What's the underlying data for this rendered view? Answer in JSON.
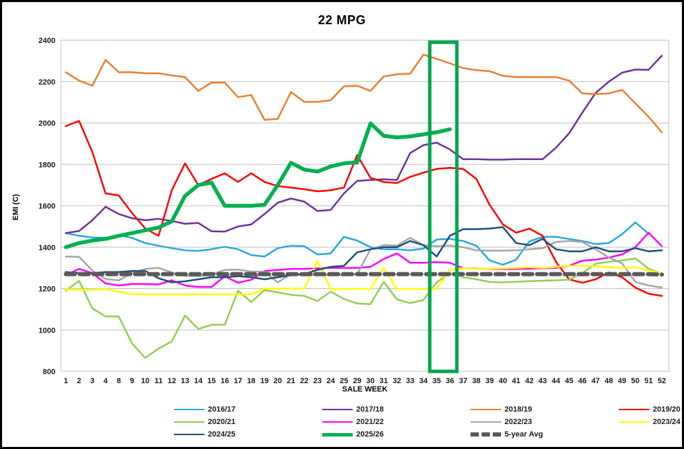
{
  "window": {
    "title": "22 MPG chart",
    "background": "#ffffff",
    "frame_color": "#000000"
  },
  "chart_data": {
    "type": "line",
    "title": "22 MPG",
    "xlabel": "SALE WEEK",
    "ylabel": "EMI (C)",
    "ylim": [
      800,
      2400
    ],
    "yticks": [
      800,
      1000,
      1200,
      1400,
      1600,
      1800,
      2000,
      2200,
      2400
    ],
    "grid": "horizontal",
    "legend_position": "bottom",
    "gridline_color": "#BFBFBF",
    "highlight_box": {
      "from_category": "35",
      "to_category": "36",
      "color": "#00A550",
      "note": "vertical rectangle spanning full plot height at weeks 35-36"
    },
    "categories": [
      "1",
      "2",
      "3",
      "4",
      "8",
      "9",
      "10",
      "11",
      "12",
      "13",
      "14",
      "15",
      "16",
      "17",
      "18",
      "19",
      "20",
      "21",
      "22",
      "23",
      "24",
      "25",
      "29",
      "30",
      "31",
      "32",
      "33",
      "34",
      "35",
      "36",
      "37",
      "38",
      "39",
      "40",
      "41",
      "42",
      "43",
      "44",
      "45",
      "46",
      "47",
      "48",
      "49",
      "50",
      "51",
      "52"
    ],
    "series": [
      {
        "name": "2016/17",
        "color": "#29A8E0",
        "width": 2.5,
        "dash": null,
        "values": [
          1468,
          1455,
          1447,
          1445,
          1458,
          1445,
          1420,
          1407,
          1395,
          1385,
          1382,
          1390,
          1402,
          1390,
          1362,
          1355,
          1395,
          1407,
          1405,
          1365,
          1370,
          1450,
          1432,
          1400,
          1390,
          1390,
          1385,
          1393,
          1437,
          1440,
          1430,
          1407,
          1336,
          1315,
          1340,
          1428,
          1450,
          1450,
          1440,
          1430,
          1415,
          1420,
          1463,
          1520,
          1465,
          null
        ]
      },
      {
        "name": "2017/18",
        "color": "#7030A0",
        "width": 2.5,
        "dash": null,
        "values": [
          1468,
          1478,
          1530,
          1595,
          1560,
          1540,
          1530,
          1537,
          1527,
          1513,
          1517,
          1477,
          1475,
          1500,
          1510,
          1560,
          1615,
          1635,
          1620,
          1575,
          1580,
          1660,
          1720,
          1725,
          1728,
          1725,
          1855,
          1893,
          1905,
          1872,
          1825,
          1825,
          1823,
          1823,
          1825,
          1825,
          1825,
          1880,
          1950,
          2050,
          2145,
          2200,
          2243,
          2258,
          2257,
          2325
        ]
      },
      {
        "name": "2018/19",
        "color": "#ED7D31",
        "width": 2.5,
        "dash": null,
        "values": [
          2245,
          2205,
          2180,
          2305,
          2245,
          2245,
          2240,
          2240,
          2230,
          2222,
          2155,
          2195,
          2195,
          2125,
          2135,
          2015,
          2020,
          2150,
          2102,
          2102,
          2110,
          2177,
          2180,
          2155,
          2225,
          2235,
          2238,
          2330,
          2310,
          2288,
          2265,
          2255,
          2250,
          2228,
          2222,
          2222,
          2222,
          2222,
          2205,
          2143,
          2140,
          2143,
          2160,
          2095,
          2030,
          1955
        ]
      },
      {
        "name": "2019/20",
        "color": "#FF0000",
        "width": 2.5,
        "dash": null,
        "values": [
          1985,
          2010,
          1860,
          1660,
          1650,
          1565,
          1490,
          1455,
          1675,
          1805,
          1700,
          1730,
          1757,
          1715,
          1757,
          1715,
          1695,
          1688,
          1680,
          1670,
          1675,
          1688,
          1845,
          1735,
          1715,
          1710,
          1740,
          1760,
          1778,
          1783,
          1778,
          1730,
          1604,
          1510,
          1470,
          1490,
          1455,
          1330,
          1245,
          1228,
          1245,
          1278,
          1255,
          1205,
          1175,
          1165
        ]
      },
      {
        "name": "2020/21",
        "color": "#92D050",
        "width": 2.5,
        "dash": null,
        "values": [
          1190,
          1237,
          1105,
          1065,
          1065,
          935,
          865,
          910,
          945,
          1070,
          1005,
          1025,
          1025,
          1190,
          1135,
          1193,
          1182,
          1170,
          1165,
          1140,
          1185,
          1150,
          1128,
          1125,
          1232,
          1148,
          1130,
          1145,
          1230,
          1275,
          1255,
          1245,
          1232,
          1230,
          1233,
          1236,
          1238,
          1240,
          1243,
          1275,
          1320,
          1330,
          1336,
          1346,
          1296,
          1272
        ]
      },
      {
        "name": "2021/22",
        "color": "#FF00FF",
        "width": 2.5,
        "dash": null,
        "values": [
          1265,
          1295,
          1275,
          1225,
          1215,
          1222,
          1222,
          1220,
          1240,
          1215,
          1208,
          1208,
          1260,
          1228,
          1243,
          1285,
          1290,
          1295,
          1295,
          1298,
          1300,
          1300,
          1300,
          1305,
          1343,
          1370,
          1325,
          1325,
          1328,
          1325,
          1298,
          1296,
          1295,
          1294,
          1295,
          1296,
          1298,
          1300,
          1310,
          1335,
          1340,
          1350,
          1365,
          1400,
          1470,
          1405
        ]
      },
      {
        "name": "2022/23",
        "color": "#A6A6A6",
        "width": 2.5,
        "dash": null,
        "values": [
          1355,
          1353,
          1287,
          1247,
          1240,
          1275,
          1295,
          1300,
          1278,
          1262,
          1260,
          1268,
          1290,
          1292,
          1282,
          1282,
          1230,
          1270,
          1268,
          1265,
          1265,
          1265,
          1270,
          1390,
          1410,
          1408,
          1445,
          1410,
          1405,
          1408,
          1400,
          1385,
          1383,
          1383,
          1385,
          1390,
          1395,
          1425,
          1430,
          1425,
          1390,
          1350,
          1322,
          1232,
          1215,
          1205
        ]
      },
      {
        "name": "2023/24",
        "color": "#FFFF00",
        "width": 2.5,
        "dash": null,
        "values": [
          1197,
          1193,
          1195,
          1197,
          1185,
          1175,
          1172,
          1172,
          1172,
          1172,
          1172,
          1172,
          1172,
          1172,
          1172,
          1200,
          1200,
          1200,
          1200,
          1335,
          1198,
          1198,
          1198,
          1198,
          1300,
          1198,
          1198,
          1198,
          1198,
          1290,
          1298,
          1295,
          1296,
          1298,
          1300,
          1303,
          1300,
          1305,
          1310,
          1310,
          1308,
          1303,
          1300,
          1303,
          1288,
          1272
        ]
      },
      {
        "name": "2024/25",
        "color": "#1F4E79",
        "width": 2.5,
        "dash": null,
        "values": [
          1280,
          1275,
          1275,
          1280,
          1280,
          1285,
          1285,
          1250,
          1230,
          1235,
          1245,
          1255,
          1255,
          1260,
          1255,
          1245,
          1255,
          1265,
          1270,
          1290,
          1305,
          1310,
          1375,
          1390,
          1400,
          1400,
          1430,
          1410,
          1355,
          1455,
          1487,
          1487,
          1490,
          1497,
          1420,
          1410,
          1440,
          1390,
          1380,
          1380,
          1400,
          1380,
          1380,
          1395,
          1380,
          1385
        ]
      },
      {
        "name": "2025/26",
        "color": "#00B050",
        "width": 5.5,
        "dash": null,
        "values": [
          1400,
          1420,
          1432,
          1440,
          1455,
          1468,
          1482,
          1495,
          1525,
          1648,
          1700,
          1712,
          1600,
          1600,
          1600,
          1605,
          1700,
          1808,
          1775,
          1765,
          1790,
          1805,
          1810,
          1998,
          1938,
          1930,
          1935,
          1945,
          1955,
          1970,
          null,
          null,
          null,
          null,
          null,
          null,
          null,
          null,
          null,
          null,
          null,
          null,
          null,
          null,
          null,
          null
        ]
      },
      {
        "name": "5-year Avg",
        "color": "#595959",
        "width": 6,
        "dash": "13 7",
        "values": [
          1270,
          1270,
          1270,
          1270,
          1270,
          1270,
          1270,
          1270,
          1270,
          1270,
          1270,
          1270,
          1270,
          1270,
          1270,
          1270,
          1270,
          1270,
          1270,
          1270,
          1270,
          1270,
          1270,
          1270,
          1270,
          1270,
          1270,
          1270,
          1270,
          1270,
          1270,
          1270,
          1270,
          1270,
          1270,
          1270,
          1270,
          1270,
          1270,
          1270,
          1270,
          1270,
          1270,
          1270,
          1270,
          1268
        ]
      }
    ]
  }
}
